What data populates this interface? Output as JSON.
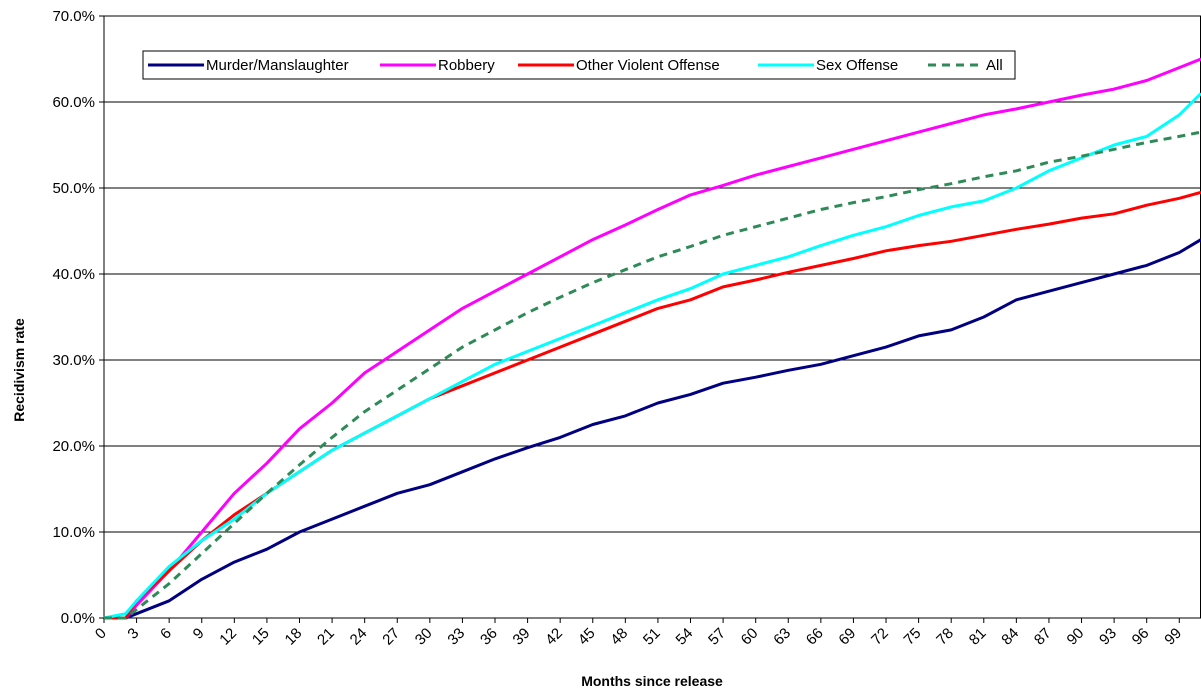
{
  "chart_data": {
    "type": "line",
    "xlabel": "Months since release",
    "ylabel": "Recidivism rate",
    "xlim": [
      0,
      101
    ],
    "ylim": [
      0,
      70
    ],
    "y_ticks": [
      "0.0%",
      "10.0%",
      "20.0%",
      "30.0%",
      "40.0%",
      "50.0%",
      "60.0%",
      "70.0%"
    ],
    "y_tick_values": [
      0,
      10,
      20,
      30,
      40,
      50,
      60,
      70
    ],
    "x_ticks": [
      "0",
      "3",
      "6",
      "9",
      "12",
      "15",
      "18",
      "21",
      "24",
      "27",
      "30",
      "33",
      "36",
      "39",
      "42",
      "45",
      "48",
      "51",
      "54",
      "57",
      "60",
      "63",
      "66",
      "69",
      "72",
      "75",
      "78",
      "81",
      "84",
      "87",
      "90",
      "93",
      "96",
      "99"
    ],
    "grid": "horizontal",
    "legend_position": "top-left",
    "x": [
      0,
      2,
      3,
      6,
      9,
      12,
      15,
      18,
      21,
      24,
      27,
      30,
      33,
      36,
      39,
      42,
      45,
      48,
      51,
      54,
      57,
      60,
      63,
      66,
      69,
      72,
      75,
      78,
      81,
      84,
      87,
      90,
      93,
      96,
      99,
      101
    ],
    "series": [
      {
        "name": "Murder/Manslaughter",
        "color": "#000080",
        "dash": "solid",
        "values": [
          0,
          0,
          0.5,
          2.0,
          4.5,
          6.5,
          8.0,
          10.0,
          11.5,
          13.0,
          14.5,
          15.5,
          17.0,
          18.5,
          19.8,
          21.0,
          22.5,
          23.5,
          25.0,
          26.0,
          27.3,
          28.0,
          28.8,
          29.5,
          30.5,
          31.5,
          32.8,
          33.5,
          35.0,
          37.0,
          38.0,
          39.0,
          40.0,
          41.0,
          42.5,
          44.0
        ]
      },
      {
        "name": "Robbery",
        "color": "#FF00FF",
        "dash": "solid",
        "values": [
          0,
          0,
          1.5,
          5.5,
          10.0,
          14.5,
          18.0,
          22.0,
          25.0,
          28.5,
          31.0,
          33.5,
          36.0,
          38.0,
          40.0,
          42.0,
          44.0,
          45.7,
          47.5,
          49.2,
          50.3,
          51.5,
          52.5,
          53.5,
          54.5,
          55.5,
          56.5,
          57.5,
          58.5,
          59.2,
          60.0,
          60.8,
          61.5,
          62.5,
          64.0,
          65.0
        ]
      },
      {
        "name": "Other Violent Offense",
        "color": "#FF0000",
        "dash": "solid",
        "values": [
          0,
          0,
          2.0,
          5.5,
          9.0,
          12.0,
          14.5,
          17.0,
          19.5,
          21.5,
          23.5,
          25.5,
          27.0,
          28.5,
          30.0,
          31.5,
          33.0,
          34.5,
          36.0,
          37.0,
          38.5,
          39.3,
          40.2,
          41.0,
          41.8,
          42.7,
          43.3,
          43.8,
          44.5,
          45.2,
          45.8,
          46.5,
          47.0,
          48.0,
          48.8,
          49.5
        ]
      },
      {
        "name": "Sex Offense",
        "color": "#00FFFF",
        "dash": "solid",
        "values": [
          0,
          0.5,
          2.0,
          6.0,
          9.0,
          11.5,
          14.5,
          17.0,
          19.5,
          21.5,
          23.5,
          25.5,
          27.5,
          29.5,
          31.0,
          32.5,
          34.0,
          35.5,
          37.0,
          38.3,
          40.0,
          41.0,
          42.0,
          43.3,
          44.5,
          45.5,
          46.8,
          47.8,
          48.5,
          50.0,
          52.0,
          53.5,
          55.0,
          56.0,
          58.5,
          61.0
        ]
      },
      {
        "name": "All",
        "color": "#2E8B57",
        "dash": "dashed",
        "values": [
          0,
          0,
          1.0,
          4.0,
          7.5,
          11.0,
          14.5,
          17.8,
          21.0,
          24.0,
          26.5,
          29.0,
          31.5,
          33.5,
          35.5,
          37.3,
          39.0,
          40.5,
          42.0,
          43.2,
          44.5,
          45.5,
          46.5,
          47.5,
          48.3,
          49.0,
          49.8,
          50.5,
          51.3,
          52.0,
          53.0,
          53.7,
          54.5,
          55.3,
          56.0,
          56.5
        ]
      }
    ]
  }
}
